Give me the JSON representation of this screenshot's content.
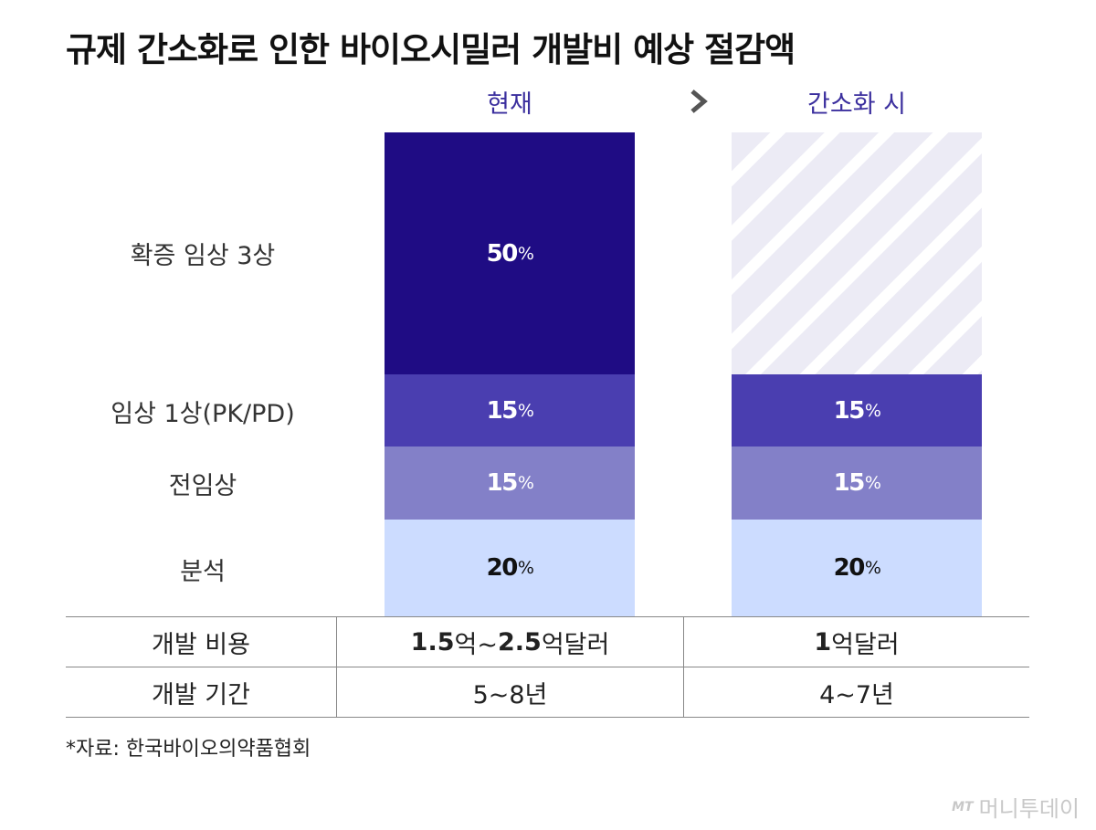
{
  "title": "규제 간소화로 인한 바이오시밀러 개발비 예상 절감액",
  "chart_data": {
    "type": "bar",
    "stacked": true,
    "title": "규제 간소화로 인한 바이오시밀러 개발비 예상 절감액",
    "categories": [
      "현재",
      "간소화 시"
    ],
    "unit": "%",
    "series": [
      {
        "name": "분석",
        "values": [
          20,
          20
        ],
        "color": "#ccdcff"
      },
      {
        "name": "전임상",
        "values": [
          15,
          15
        ],
        "color": "#8380c8"
      },
      {
        "name": "임상 1상(PK/PD)",
        "values": [
          15,
          15
        ],
        "color": "#4a3eb0"
      },
      {
        "name": "확증 임상 3상",
        "values": [
          50,
          null
        ],
        "color": "#1f0c84"
      }
    ],
    "removed_segment_pattern": "diagonal-stripes",
    "ylim": [
      0,
      100
    ],
    "grid": false
  },
  "table": {
    "rows": [
      {
        "label": "개발 비용",
        "current_num1": "1.5",
        "current_mid": "억~",
        "current_num2": "2.5",
        "current_end": "억달러",
        "simplified_num": "1",
        "simplified_end": "억달러"
      },
      {
        "label": "개발 기간",
        "current": "5~8년",
        "simplified": "4~7년"
      }
    ]
  },
  "source": "*자료: 한국바이오의약품협회",
  "brand": {
    "mt": "MT",
    "name": "머니투데이"
  },
  "colors": {
    "header": "#3b2f9e",
    "stripe": "#ecebf5"
  },
  "icons": {
    "arrow": "arrow-right-icon",
    "brand": "brand-logo-icon"
  }
}
